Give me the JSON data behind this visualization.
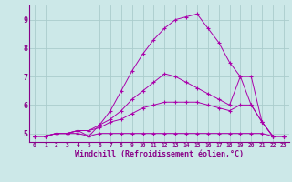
{
  "x": [
    0,
    1,
    2,
    3,
    4,
    5,
    6,
    7,
    8,
    9,
    10,
    11,
    12,
    13,
    14,
    15,
    16,
    17,
    18,
    19,
    20,
    21,
    22,
    23
  ],
  "line1": [
    4.9,
    4.9,
    5.0,
    5.0,
    5.0,
    4.9,
    5.0,
    5.0,
    5.0,
    5.0,
    5.0,
    5.0,
    5.0,
    5.0,
    5.0,
    5.0,
    5.0,
    5.0,
    5.0,
    5.0,
    5.0,
    5.0,
    4.9,
    4.9
  ],
  "line2": [
    4.9,
    4.9,
    5.0,
    5.0,
    5.1,
    5.1,
    5.2,
    5.4,
    5.5,
    5.7,
    5.9,
    6.0,
    6.1,
    6.1,
    6.1,
    6.1,
    6.0,
    5.9,
    5.8,
    6.0,
    6.0,
    5.4,
    4.9,
    4.9
  ],
  "line3": [
    4.9,
    4.9,
    5.0,
    5.0,
    5.1,
    5.1,
    5.3,
    5.5,
    5.8,
    6.2,
    6.5,
    6.8,
    7.1,
    7.0,
    6.8,
    6.6,
    6.4,
    6.2,
    6.0,
    7.0,
    7.0,
    5.4,
    4.9,
    4.9
  ],
  "line4": [
    4.9,
    4.9,
    5.0,
    5.0,
    5.1,
    4.9,
    5.3,
    5.8,
    6.5,
    7.2,
    7.8,
    8.3,
    8.7,
    9.0,
    9.1,
    9.2,
    8.7,
    8.2,
    7.5,
    7.0,
    6.0,
    5.4,
    4.9,
    4.9
  ],
  "line_color": "#aa00aa",
  "bg_color": "#cce8e8",
  "grid_color": "#aacccc",
  "xlabel": "Windchill (Refroidissement éolien,°C)",
  "ylim": [
    4.7,
    9.5
  ],
  "xlim": [
    -0.5,
    23.5
  ],
  "yticks": [
    5,
    6,
    7,
    8,
    9
  ],
  "xticks": [
    0,
    1,
    2,
    3,
    4,
    5,
    6,
    7,
    8,
    9,
    10,
    11,
    12,
    13,
    14,
    15,
    16,
    17,
    18,
    19,
    20,
    21,
    22,
    23
  ],
  "tick_color": "#880088",
  "label_color": "#880088"
}
